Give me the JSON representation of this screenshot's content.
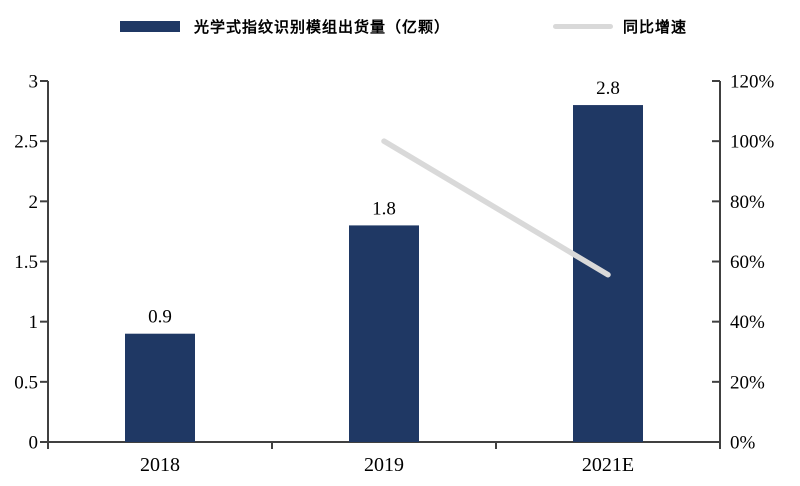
{
  "legend": {
    "items": [
      {
        "label": "光学式指纹识别模组出货量（亿颗）",
        "type": "bar",
        "color": "#1f3864"
      },
      {
        "label": "同比增速",
        "type": "line",
        "color": "#d9d9d9"
      }
    ]
  },
  "chart_data": {
    "type": "bar",
    "categories": [
      "2018",
      "2019",
      "2021E"
    ],
    "series": [
      {
        "name": "光学式指纹识别模组出货量（亿颗）",
        "type": "bar",
        "axis": "left",
        "values": [
          0.9,
          1.8,
          2.8
        ],
        "labels": [
          "0.9",
          "1.8",
          "2.8"
        ],
        "color": "#1f3864"
      },
      {
        "name": "同比增速",
        "type": "line",
        "axis": "right",
        "values": [
          null,
          1.0,
          0.556
        ],
        "color": "#d9d9d9"
      }
    ],
    "left_axis": {
      "min": 0,
      "max": 3,
      "step": 0.5,
      "ticks": [
        "0",
        "0.5",
        "1",
        "1.5",
        "2",
        "2.5",
        "3"
      ]
    },
    "right_axis": {
      "min": 0,
      "max": 1.2,
      "step": 0.2,
      "ticks": [
        "0%",
        "20%",
        "40%",
        "60%",
        "80%",
        "100%",
        "120%"
      ]
    },
    "grid": false,
    "legend_position": "top",
    "colors": {
      "bar": "#1f3864",
      "line": "#d9d9d9",
      "axis": "#404040",
      "text": "#000000"
    }
  }
}
